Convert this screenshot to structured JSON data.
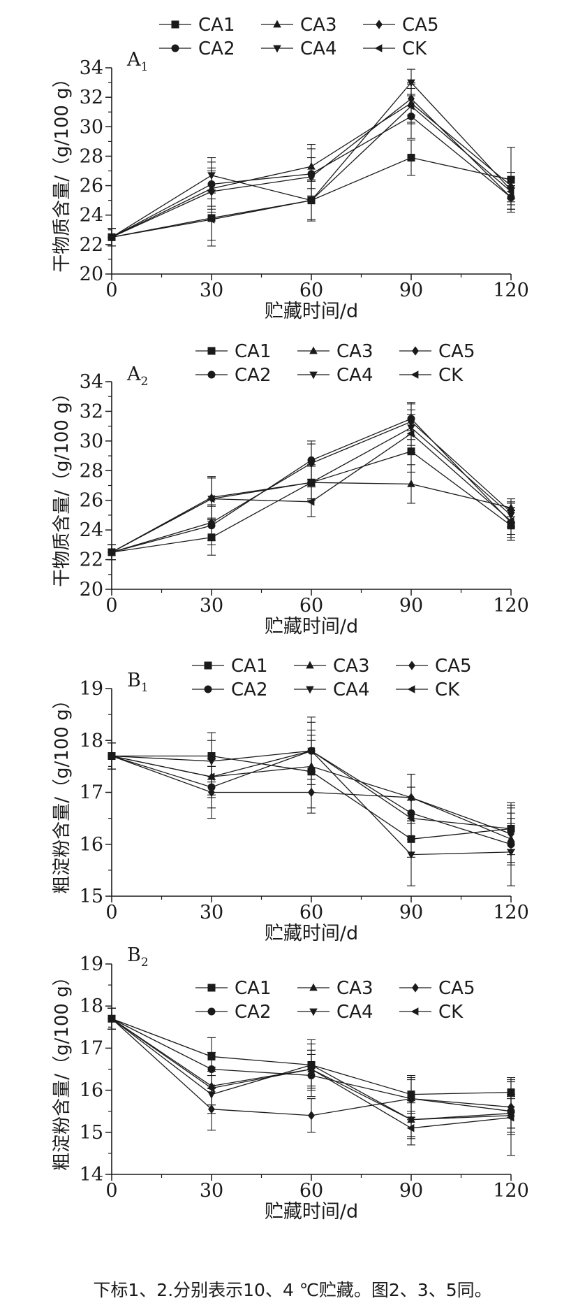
{
  "caption": "下标1、2.分别表示10、4 ℃贮藏。图2、3、5同。",
  "chart_data": [
    {
      "type": "line",
      "panel_label": "A",
      "panel_sub": "1",
      "xlabel": "贮藏时间/d",
      "ylabel": "干物质含量/（g/100 g）",
      "x": [
        0,
        30,
        60,
        90,
        120
      ],
      "xlim": [
        0,
        120
      ],
      "ylim": [
        20,
        34
      ],
      "yticks": [
        20,
        22,
        24,
        26,
        28,
        30,
        32,
        34
      ],
      "legend_position": "top",
      "series": [
        {
          "name": "CA1",
          "marker": "square",
          "values": [
            22.5,
            23.8,
            25.0,
            27.9,
            26.4
          ],
          "err": [
            0.6,
            1.9,
            1.4,
            1.2,
            2.2
          ]
        },
        {
          "name": "CA2",
          "marker": "circle",
          "values": [
            22.5,
            26.1,
            26.8,
            30.7,
            25.2
          ],
          "err": [
            0.6,
            1.5,
            1.7,
            1.5,
            0.8
          ]
        },
        {
          "name": "CA3",
          "marker": "triangle-up",
          "values": [
            22.5,
            25.8,
            27.3,
            31.6,
            26.0
          ],
          "err": [
            0.6,
            1.4,
            1.5,
            1.3,
            0.9
          ]
        },
        {
          "name": "CA4",
          "marker": "triangle-down",
          "values": [
            22.5,
            26.7,
            25.0,
            33.0,
            25.7
          ],
          "err": [
            0.6,
            1.2,
            1.3,
            0.9,
            0.8
          ]
        },
        {
          "name": "CA5",
          "marker": "diamond",
          "values": [
            22.5,
            25.6,
            26.6,
            31.9,
            25.2
          ],
          "err": [
            0.6,
            1.4,
            1.3,
            1.1,
            0.8
          ]
        },
        {
          "name": "CK",
          "marker": "triangle-left",
          "values": [
            22.5,
            23.7,
            25.0,
            31.4,
            25.6
          ],
          "err": [
            0.6,
            1.4,
            1.3,
            1.2,
            0.9
          ]
        }
      ]
    },
    {
      "type": "line",
      "panel_label": "A",
      "panel_sub": "2",
      "xlabel": "贮藏时间/d",
      "ylabel": "干物质含量/（g/100 g）",
      "x": [
        0,
        30,
        60,
        90,
        120
      ],
      "xlim": [
        0,
        120
      ],
      "ylim": [
        20,
        34
      ],
      "yticks": [
        20,
        22,
        24,
        26,
        28,
        30,
        32,
        34
      ],
      "legend_position": "top",
      "series": [
        {
          "name": "CA1",
          "marker": "square",
          "values": [
            22.5,
            23.5,
            27.2,
            29.3,
            24.3
          ],
          "err": [
            0.5,
            1.2,
            1.1,
            1.4,
            1.0
          ]
        },
        {
          "name": "CA2",
          "marker": "circle",
          "values": [
            22.5,
            24.3,
            28.7,
            31.5,
            24.5
          ],
          "err": [
            0.5,
            1.3,
            1.3,
            1.1,
            1.0
          ]
        },
        {
          "name": "CA3",
          "marker": "triangle-up",
          "values": [
            22.5,
            26.2,
            27.2,
            27.1,
            25.5
          ],
          "err": [
            0.5,
            1.4,
            1.2,
            1.3,
            0.6
          ]
        },
        {
          "name": "CA4",
          "marker": "triangle-down",
          "values": [
            22.5,
            26.1,
            27.2,
            30.9,
            25.0
          ],
          "err": [
            0.5,
            1.4,
            1.1,
            1.2,
            0.8
          ]
        },
        {
          "name": "CA5",
          "marker": "diamond",
          "values": [
            22.5,
            24.5,
            28.5,
            31.3,
            25.2
          ],
          "err": [
            0.5,
            1.2,
            1.3,
            1.2,
            0.7
          ]
        },
        {
          "name": "CK",
          "marker": "triangle-left",
          "values": [
            22.5,
            26.1,
            25.9,
            30.5,
            24.6
          ],
          "err": [
            0.5,
            1.5,
            1.0,
            1.3,
            0.9
          ]
        }
      ]
    },
    {
      "type": "line",
      "panel_label": "B",
      "panel_sub": "1",
      "xlabel": "贮藏时间/d",
      "ylabel": "粗淀粉含量/（g/100 g）",
      "x": [
        0,
        30,
        60,
        90,
        120
      ],
      "xlim": [
        0,
        120
      ],
      "ylim": [
        15,
        19
      ],
      "yticks": [
        15,
        16,
        17,
        18,
        19
      ],
      "legend_position": "top",
      "series": [
        {
          "name": "CA1",
          "marker": "square",
          "values": [
            17.7,
            17.7,
            17.4,
            16.1,
            16.3
          ],
          "err": [
            0.25,
            0.45,
            0.7,
            0.35,
            0.5
          ]
        },
        {
          "name": "CA2",
          "marker": "circle",
          "values": [
            17.7,
            17.1,
            17.8,
            16.6,
            16.0
          ],
          "err": [
            0.25,
            0.4,
            0.65,
            0.5,
            0.4
          ]
        },
        {
          "name": "CA3",
          "marker": "triangle-up",
          "values": [
            17.7,
            17.3,
            17.5,
            16.9,
            16.1
          ],
          "err": [
            0.25,
            0.35,
            0.5,
            0.45,
            0.5
          ]
        },
        {
          "name": "CA4",
          "marker": "triangle-down",
          "values": [
            17.7,
            17.6,
            17.8,
            15.8,
            15.85
          ],
          "err": [
            0.25,
            0.4,
            0.4,
            0.6,
            0.65
          ]
        },
        {
          "name": "CA5",
          "marker": "diamond",
          "values": [
            17.7,
            17.0,
            17.0,
            16.9,
            16.2
          ],
          "err": [
            0.25,
            0.5,
            0.4,
            0.45,
            0.55
          ]
        },
        {
          "name": "CK",
          "marker": "triangle-left",
          "values": [
            17.7,
            17.3,
            17.8,
            16.5,
            16.3
          ],
          "err": [
            0.25,
            0.4,
            0.55,
            0.35,
            0.4
          ]
        }
      ]
    },
    {
      "type": "line",
      "panel_label": "B",
      "panel_sub": "2",
      "xlabel": "贮藏时间/d",
      "ylabel": "粗淀粉含量/（g/100 g）",
      "x": [
        0,
        30,
        60,
        90,
        120
      ],
      "xlim": [
        0,
        120
      ],
      "ylim": [
        14,
        19
      ],
      "yticks": [
        14,
        15,
        16,
        17,
        18,
        19
      ],
      "legend_position": "top",
      "series": [
        {
          "name": "CA1",
          "marker": "square",
          "values": [
            17.7,
            16.8,
            16.6,
            15.9,
            15.95
          ],
          "err": [
            0.25,
            0.45,
            0.6,
            0.45,
            0.35
          ]
        },
        {
          "name": "CA2",
          "marker": "circle",
          "values": [
            17.7,
            16.5,
            16.35,
            15.8,
            15.5
          ],
          "err": [
            0.25,
            0.4,
            0.5,
            0.5,
            0.4
          ]
        },
        {
          "name": "CA3",
          "marker": "triangle-up",
          "values": [
            17.7,
            16.1,
            16.5,
            15.3,
            15.45
          ],
          "err": [
            0.25,
            0.45,
            0.45,
            0.4,
            0.35
          ]
        },
        {
          "name": "CA4",
          "marker": "triangle-down",
          "values": [
            17.7,
            15.9,
            16.6,
            15.3,
            15.4
          ],
          "err": [
            0.25,
            0.45,
            0.5,
            0.45,
            0.45
          ]
        },
        {
          "name": "CA5",
          "marker": "diamond",
          "values": [
            17.7,
            15.55,
            15.4,
            15.8,
            15.6
          ],
          "err": [
            0.25,
            0.5,
            0.4,
            0.45,
            0.6
          ]
        },
        {
          "name": "CK",
          "marker": "triangle-left",
          "values": [
            17.7,
            16.05,
            16.5,
            15.1,
            15.35
          ],
          "err": [
            0.25,
            0.4,
            0.45,
            0.4,
            0.9
          ]
        }
      ]
    }
  ]
}
